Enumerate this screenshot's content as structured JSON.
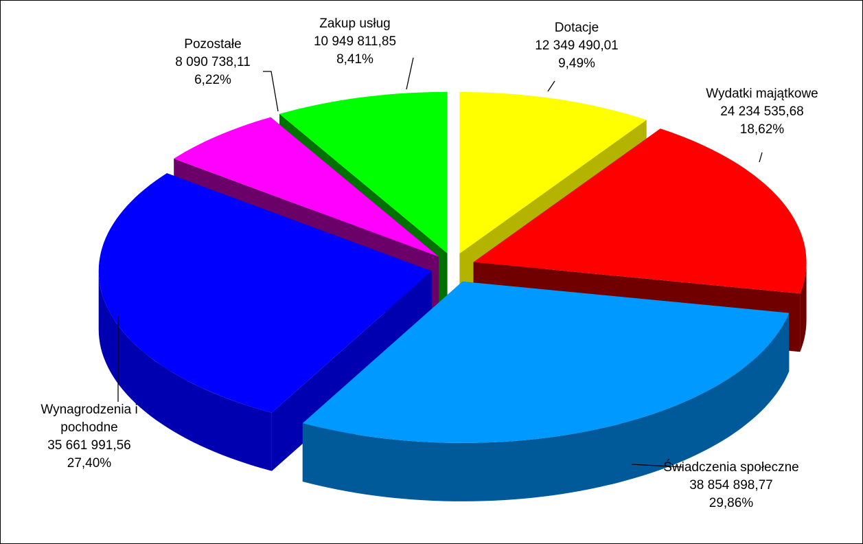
{
  "chart_data": {
    "type": "pie",
    "categories": [
      "Dotacje",
      "Wydatki majątkowe",
      "Świadczenia społeczne",
      "Wynagrodzenia i pochodne",
      "Pozostałe",
      "Zakup usług"
    ],
    "values": [
      12349490.01,
      24234535.68,
      38854898.77,
      35661991.56,
      8090738.11,
      10949811.85
    ],
    "value_labels": [
      "12 349 490,01",
      "24 234 535,68",
      "38 854 898,77",
      "35 661 991,56",
      "8 090 738,11",
      "10 949 811,85"
    ],
    "percentages": [
      9.49,
      18.62,
      29.86,
      27.4,
      6.22,
      8.41
    ],
    "percentage_labels": [
      "9,49%",
      "18,62%",
      "29,86%",
      "27,40%",
      "6,22%",
      "8,41%"
    ],
    "colors": [
      "#ffff00",
      "#ff0000",
      "#0099ff",
      "#0000ff",
      "#ff00ff",
      "#00ff00"
    ],
    "side_colors": [
      "#b3b300",
      "#700000",
      "#005a99",
      "#0000b0",
      "#6a0068",
      "#007000"
    ]
  }
}
